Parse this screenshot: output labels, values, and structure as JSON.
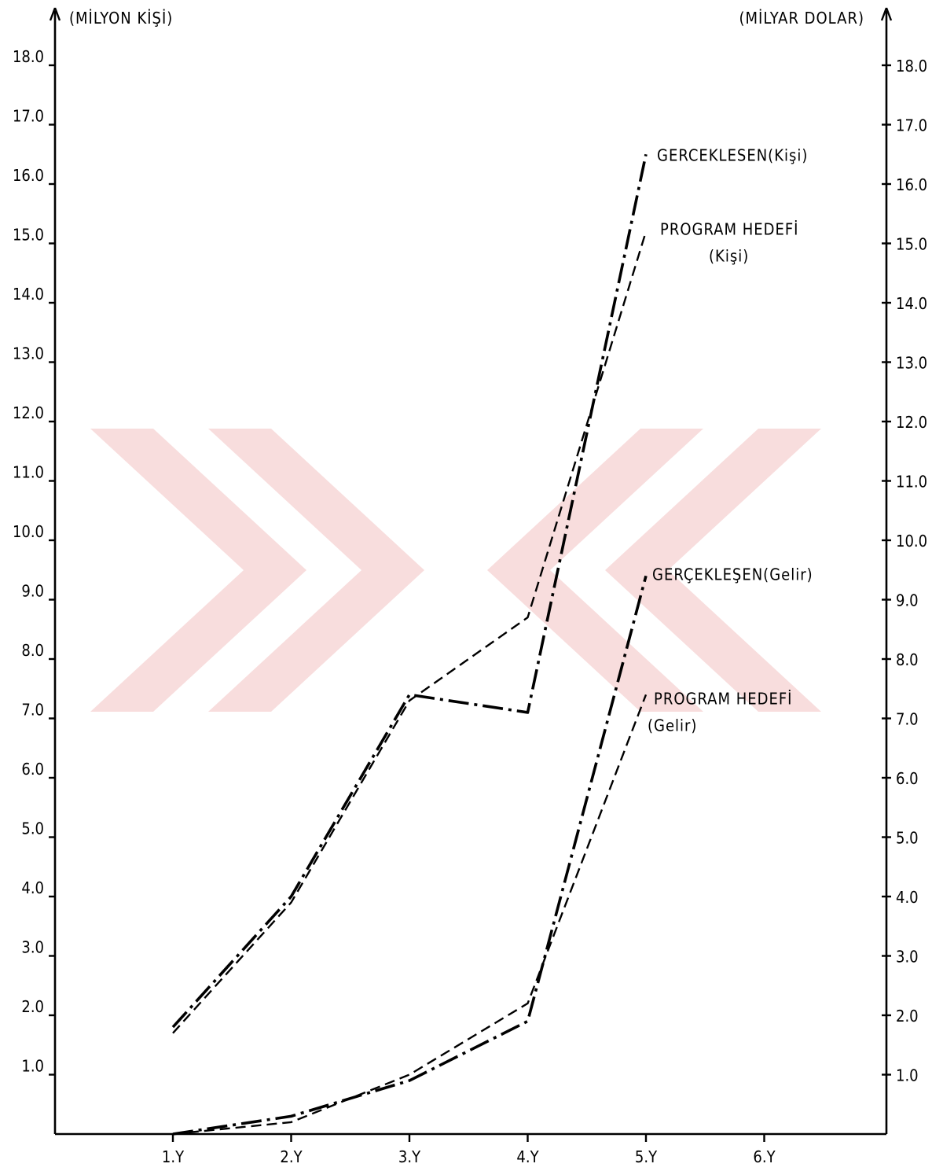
{
  "chart_data": {
    "type": "line",
    "left_axis_title": "(MİLYON KİŞİ)",
    "right_axis_title": "(MİLYAR DOLAR)",
    "categories": [
      "1.Y",
      "2.Y",
      "3.Y",
      "4.Y",
      "5.Y",
      "6.Y"
    ],
    "left_ticks": [
      "1.0",
      "2.0",
      "3.0",
      "4.0",
      "5.0",
      "6.0",
      "7.0",
      "8.0",
      "9.0",
      "10.0",
      "11.0",
      "12.0",
      "13.0",
      "14.0",
      "15.0",
      "16.0",
      "17.0",
      "18.0"
    ],
    "right_ticks": [
      "1.0",
      "2.0",
      "3.0",
      "4.0",
      "5.0",
      "6.0",
      "7.0",
      "8.0",
      "9.0",
      "10.0",
      "11.0",
      "12.0",
      "13.0",
      "14.0",
      "15.0",
      "16.0",
      "17.0",
      "18.0"
    ],
    "ylim": [
      0,
      18.5
    ],
    "series": [
      {
        "name_lines": [
          "GERCEKLESEN(Kişi)"
        ],
        "style": "dash-dot",
        "x": [
          "1.Y",
          "2.Y",
          "3.Y",
          "4.Y",
          "5.Y"
        ],
        "values": [
          1.8,
          4.0,
          7.4,
          7.1,
          16.5
        ]
      },
      {
        "name_lines": [
          "PROGRAM HEDEFİ",
          "(Kişi)"
        ],
        "style": "dashed",
        "x": [
          "1.Y",
          "2.Y",
          "3.Y",
          "4.Y",
          "5.Y"
        ],
        "values": [
          1.7,
          3.9,
          7.3,
          8.7,
          15.2
        ]
      },
      {
        "name_lines": [
          "GERÇEKLEŞEN(Gelir)"
        ],
        "style": "dash-dot",
        "x": [
          "1.Y",
          "2.Y",
          "3.Y",
          "4.Y",
          "5.Y"
        ],
        "values": [
          0.0,
          0.3,
          0.9,
          1.9,
          9.4
        ]
      },
      {
        "name_lines": [
          "PROGRAM HEDEFİ",
          "(Gelir)"
        ],
        "style": "dashed",
        "x": [
          "1.Y",
          "2.Y",
          "3.Y",
          "4.Y",
          "5.Y"
        ],
        "values": [
          0.0,
          0.2,
          1.0,
          2.2,
          7.4
        ]
      }
    ]
  }
}
